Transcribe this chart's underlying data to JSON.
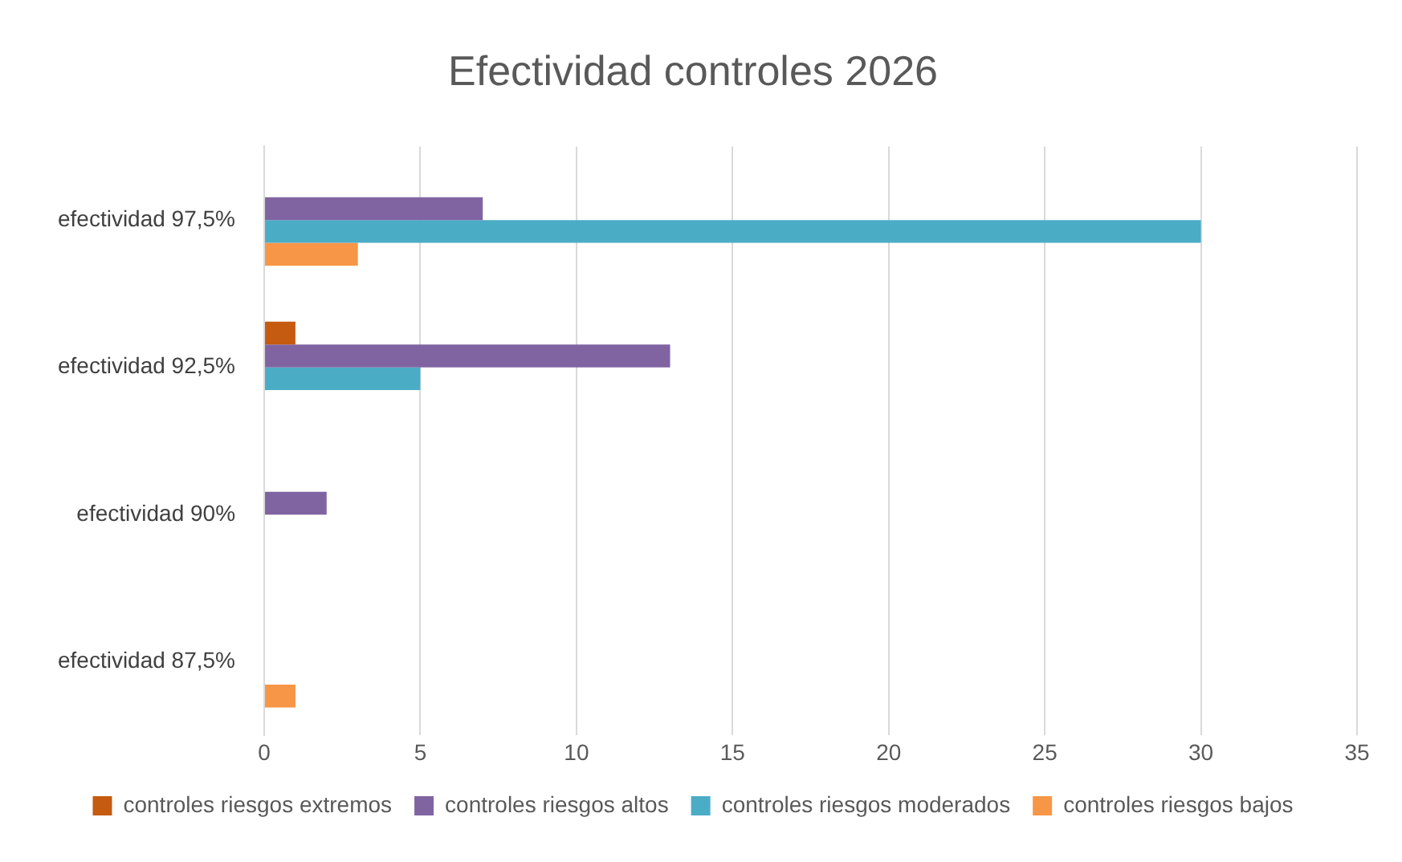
{
  "chart_data": {
    "type": "bar",
    "orientation": "horizontal",
    "title": "Efectividad controles 2026",
    "categories": [
      "efectividad 97,5%",
      "efectividad 92,5%",
      "efectividad 90%",
      "efectividad 87,5%"
    ],
    "series": [
      {
        "name": "controles riesgos extremos",
        "color": "#c55a11",
        "values": [
          null,
          1,
          null,
          null
        ]
      },
      {
        "name": "controles riesgos altos",
        "color": "#8064a2",
        "values": [
          7,
          13,
          2,
          null
        ]
      },
      {
        "name": "controles riesgos moderados",
        "color": "#4bacc6",
        "values": [
          30,
          5,
          null,
          null
        ]
      },
      {
        "name": "controles riesgos bajos",
        "color": "#f79646",
        "values": [
          3,
          null,
          null,
          1
        ]
      }
    ],
    "xlim": [
      0,
      35
    ],
    "xticks": [
      0,
      5,
      10,
      15,
      20,
      25,
      30,
      35
    ],
    "grid": "x",
    "legend": "bottom"
  }
}
